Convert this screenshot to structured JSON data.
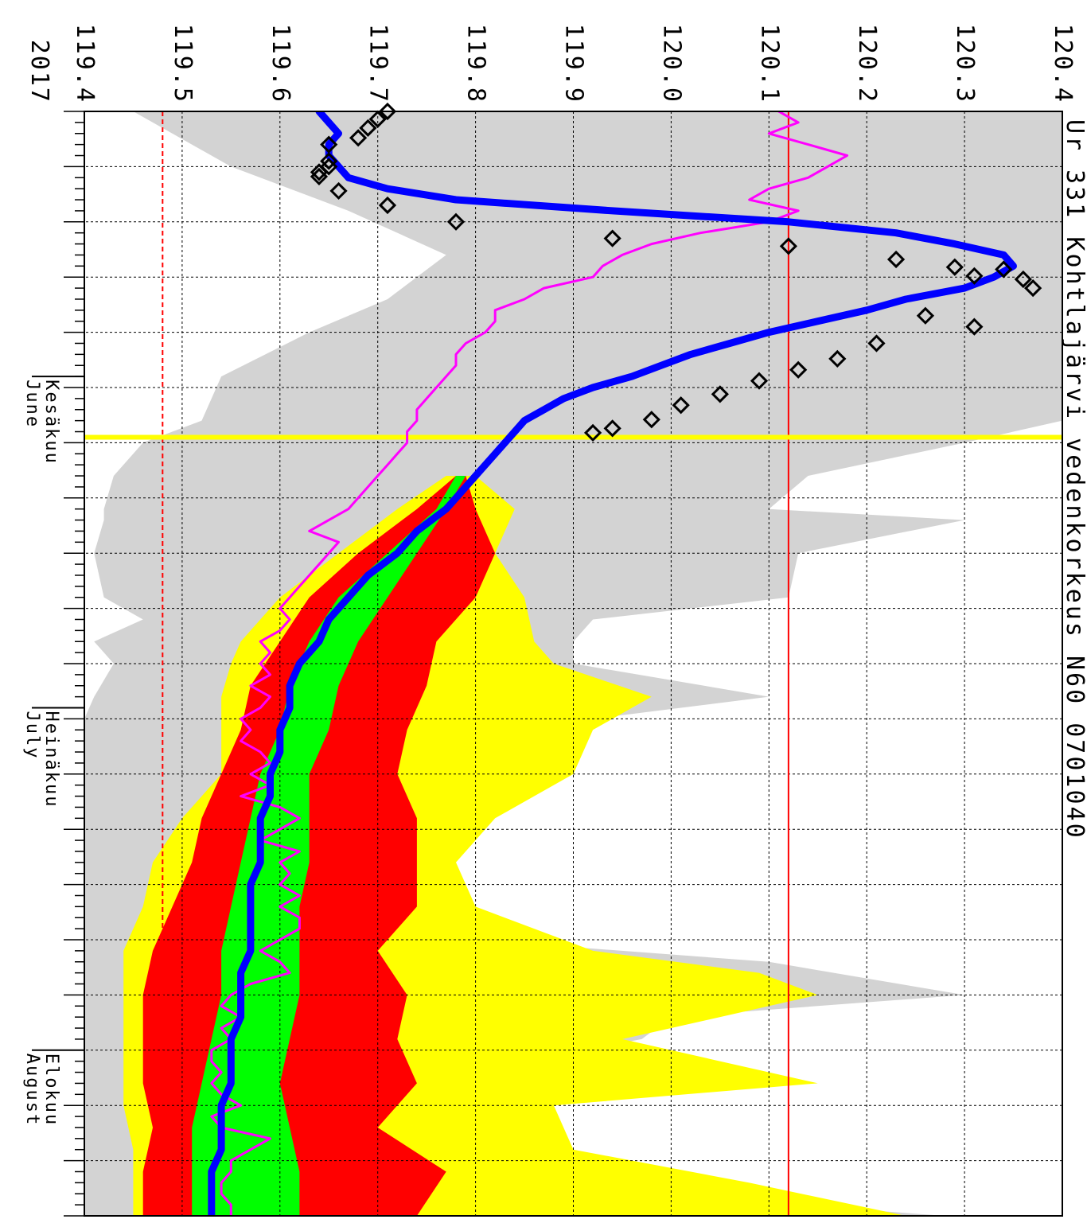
{
  "chart_data": {
    "type": "area",
    "title": "Ur 331 Kohtlajärvi vedenkorkeus N60 0701040",
    "year": "2017",
    "orientation": "rotated-90-clockwise",
    "xlabel": "",
    "ylabel": "",
    "ylim": [
      119.4,
      120.4
    ],
    "y_ticks": [
      "119.4",
      "119.5",
      "119.6",
      "119.7",
      "119.8",
      "119.9",
      "120.0",
      "120.1",
      "120.2",
      "120.3",
      "120.4"
    ],
    "x_day_range": [
      0,
      100
    ],
    "months": [
      {
        "fi": "Kesäkuu",
        "en": "June",
        "start_day": 24
      },
      {
        "fi": "Heinäkuu",
        "en": "July",
        "start_day": 54
      },
      {
        "fi": "Elokuu",
        "en": "August",
        "start_day": 85
      }
    ],
    "reference_lines": {
      "upper_red": 120.12,
      "lower_red_dashed": 119.48,
      "today_day": 29.5
    },
    "grid": true,
    "colors": {
      "observed_line": "#0000ff",
      "observations": "#000000",
      "comparison_line": "#ff00ff",
      "historical_range": "#d3d3d3",
      "band_outer": "#ffff00",
      "band_mid": "#ff0000",
      "band_inner": "#00ff00",
      "reference_line": "#ff0000",
      "today_line": "#ffff00"
    },
    "series": [
      {
        "kind": "historical_range",
        "x": [
          0,
          5,
          9,
          13,
          17,
          20,
          24,
          28,
          30,
          33,
          36,
          37,
          40,
          44,
          46,
          48,
          50,
          53,
          55,
          57,
          60,
          62,
          64,
          68,
          70,
          73,
          75,
          77,
          80,
          82,
          84,
          86,
          87,
          90,
          93,
          95,
          97,
          100
        ],
        "hi": [
          120.4,
          120.4,
          120.4,
          120.4,
          120.4,
          120.4,
          120.4,
          120.4,
          120.3,
          120.14,
          120.1,
          120.3,
          120.13,
          120.12,
          119.92,
          119.9,
          119.9,
          120.1,
          119.92,
          119.9,
          119.8,
          119.74,
          119.77,
          119.7,
          119.78,
          119.76,
          119.8,
          120.1,
          120.3,
          120.0,
          119.97,
          119.85,
          119.75,
          119.72,
          119.62,
          119.65,
          119.82,
          120.28
        ],
        "lo": [
          119.45,
          119.55,
          119.67,
          119.77,
          119.71,
          119.63,
          119.54,
          119.52,
          119.46,
          119.43,
          119.42,
          119.42,
          119.41,
          119.42,
          119.46,
          119.41,
          119.43,
          119.41,
          119.4,
          119.4,
          119.4,
          119.4,
          119.4,
          119.4,
          119.4,
          119.4,
          119.4,
          119.4,
          119.4,
          119.4,
          119.4,
          119.4,
          119.4,
          119.4,
          119.4,
          119.4,
          119.4,
          119.4
        ]
      },
      {
        "kind": "band_outer",
        "x": [
          33,
          36,
          40,
          44,
          48,
          50,
          53,
          56,
          60,
          64,
          68,
          72,
          76,
          78,
          80,
          84,
          88,
          90,
          94,
          97,
          100
        ],
        "hi": [
          119.8,
          119.84,
          119.82,
          119.85,
          119.86,
          119.88,
          119.98,
          119.92,
          119.9,
          119.82,
          119.78,
          119.8,
          119.92,
          120.09,
          120.15,
          119.95,
          120.15,
          119.88,
          119.9,
          120.08,
          120.24
        ],
        "lo": [
          119.77,
          119.72,
          119.66,
          119.6,
          119.56,
          119.55,
          119.54,
          119.54,
          119.54,
          119.5,
          119.47,
          119.46,
          119.44,
          119.44,
          119.44,
          119.44,
          119.44,
          119.44,
          119.45,
          119.45,
          119.45
        ]
      },
      {
        "kind": "band_mid",
        "x": [
          33,
          36,
          40,
          44,
          48,
          52,
          56,
          60,
          64,
          68,
          72,
          76,
          80,
          84,
          88,
          92,
          96,
          100
        ],
        "hi": [
          119.79,
          119.8,
          119.82,
          119.8,
          119.76,
          119.75,
          119.73,
          119.72,
          119.74,
          119.74,
          119.74,
          119.7,
          119.73,
          119.72,
          119.74,
          119.7,
          119.77,
          119.74
        ],
        "lo": [
          119.78,
          119.74,
          119.68,
          119.63,
          119.6,
          119.57,
          119.56,
          119.54,
          119.52,
          119.51,
          119.49,
          119.47,
          119.46,
          119.46,
          119.46,
          119.47,
          119.46,
          119.46
        ]
      },
      {
        "kind": "band_inner",
        "x": [
          33,
          36,
          40,
          44,
          48,
          52,
          56,
          60,
          64,
          68,
          72,
          76,
          80,
          84,
          88,
          92,
          96,
          100
        ],
        "hi": [
          119.79,
          119.77,
          119.74,
          119.71,
          119.68,
          119.66,
          119.65,
          119.63,
          119.63,
          119.63,
          119.62,
          119.62,
          119.62,
          119.61,
          119.6,
          119.61,
          119.62,
          119.62
        ],
        "lo": [
          119.78,
          119.76,
          119.71,
          119.66,
          119.63,
          119.61,
          119.6,
          119.58,
          119.57,
          119.56,
          119.55,
          119.54,
          119.54,
          119.53,
          119.52,
          119.51,
          119.51,
          119.51
        ]
      },
      {
        "kind": "comparison_line",
        "x": [
          0,
          1,
          2,
          3,
          4,
          5,
          6,
          7,
          8,
          9,
          10,
          11,
          12,
          13,
          14,
          15,
          16,
          17,
          18,
          19,
          20,
          21,
          22,
          23,
          24,
          25,
          26,
          27,
          28,
          29,
          30,
          31,
          32,
          33,
          34,
          35,
          36,
          37,
          38,
          39,
          40,
          41,
          42,
          43,
          44,
          45,
          46,
          47,
          48,
          49,
          50,
          51,
          52,
          53,
          54,
          55,
          56,
          57,
          58,
          59,
          60,
          61,
          62,
          63,
          64,
          65,
          66,
          67,
          68,
          69,
          70,
          71,
          72,
          73,
          74,
          75,
          76,
          77,
          78,
          79,
          80,
          81,
          82,
          83,
          84,
          85,
          86,
          87,
          88,
          89,
          90,
          91,
          92,
          93,
          94,
          95,
          96,
          97,
          98,
          99,
          100
        ],
        "y": [
          120.11,
          120.13,
          120.1,
          120.14,
          120.18,
          120.16,
          120.14,
          120.1,
          120.08,
          120.13,
          120.1,
          120.03,
          119.98,
          119.95,
          119.93,
          119.92,
          119.87,
          119.85,
          119.82,
          119.82,
          119.81,
          119.79,
          119.78,
          119.78,
          119.77,
          119.76,
          119.75,
          119.74,
          119.74,
          119.73,
          119.73,
          119.72,
          119.71,
          119.7,
          119.69,
          119.68,
          119.67,
          119.65,
          119.63,
          119.66,
          119.65,
          119.64,
          119.63,
          119.62,
          119.61,
          119.6,
          119.61,
          119.6,
          119.58,
          119.59,
          119.58,
          119.59,
          119.57,
          119.59,
          119.58,
          119.56,
          119.57,
          119.56,
          119.58,
          119.59,
          119.57,
          119.59,
          119.56,
          119.6,
          119.62,
          119.6,
          119.58,
          119.62,
          119.6,
          119.61,
          119.6,
          119.62,
          119.6,
          119.62,
          119.62,
          119.6,
          119.58,
          119.6,
          119.61,
          119.57,
          119.55,
          119.54,
          119.56,
          119.54,
          119.55,
          119.53,
          119.53,
          119.54,
          119.53,
          119.54,
          119.56,
          119.53,
          119.54,
          119.59,
          119.57,
          119.55,
          119.55,
          119.54,
          119.54,
          119.55,
          119.55
        ]
      },
      {
        "kind": "observed_line",
        "x": [
          0,
          1,
          2,
          3,
          4,
          5,
          6,
          7,
          8,
          9,
          10,
          11,
          12,
          13,
          14,
          15,
          16,
          17,
          18,
          19,
          20,
          21,
          22,
          23,
          24,
          25,
          26,
          27,
          28,
          29,
          30,
          31,
          32,
          33,
          34,
          36,
          38,
          40,
          42,
          44,
          46,
          48,
          50,
          52,
          54,
          56,
          58,
          60,
          62,
          64,
          66,
          68,
          70,
          72,
          74,
          76,
          78,
          80,
          82,
          84,
          86,
          88,
          90,
          92,
          94,
          96,
          98,
          100
        ],
        "y": [
          119.64,
          119.65,
          119.66,
          119.65,
          119.65,
          119.66,
          119.67,
          119.71,
          119.78,
          119.94,
          120.12,
          120.23,
          120.29,
          120.34,
          120.35,
          120.33,
          120.3,
          120.24,
          120.2,
          120.15,
          120.1,
          120.06,
          120.02,
          119.99,
          119.96,
          119.92,
          119.89,
          119.87,
          119.85,
          119.84,
          119.83,
          119.82,
          119.81,
          119.8,
          119.79,
          119.77,
          119.74,
          119.72,
          119.69,
          119.67,
          119.65,
          119.64,
          119.62,
          119.61,
          119.61,
          119.6,
          119.6,
          119.59,
          119.59,
          119.58,
          119.58,
          119.58,
          119.57,
          119.57,
          119.57,
          119.57,
          119.56,
          119.56,
          119.56,
          119.55,
          119.55,
          119.55,
          119.54,
          119.54,
          119.54,
          119.53,
          119.53,
          119.53
        ]
      },
      {
        "kind": "observations",
        "x": [
          0,
          0.7,
          1.5,
          2.4,
          3.0,
          4.5,
          5.0,
          5.5,
          5.9,
          7.2,
          8.5,
          10,
          11.5,
          12.2,
          13.4,
          14.1,
          14.3,
          14.9,
          15.2,
          16.0,
          18.5,
          19.5,
          21.0,
          22.4,
          23.4,
          24.4,
          25.6,
          26.6,
          27.9,
          28.7,
          29.1
        ],
        "y": [
          119.71,
          119.7,
          119.69,
          119.68,
          119.65,
          119.65,
          119.65,
          119.64,
          119.64,
          119.66,
          119.71,
          119.78,
          119.94,
          120.12,
          120.23,
          120.29,
          120.34,
          120.31,
          120.36,
          120.37,
          120.26,
          120.31,
          120.21,
          120.17,
          120.13,
          120.09,
          120.05,
          120.01,
          119.98,
          119.94,
          119.92
        ]
      }
    ]
  }
}
